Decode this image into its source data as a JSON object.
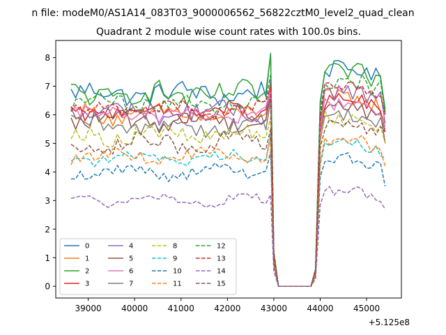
{
  "chart_data": {
    "type": "line",
    "suptitle": "n file: modeM0/AS1A14_083T03_9000006562_56822cztM0_level2_quad_clean",
    "title": "Quadrant 2 module wise count rates with 100.0s bins.",
    "xlabel": "",
    "ylabel": "",
    "x_offset_label": "+5.125e8",
    "xlim": [
      38300,
      45750
    ],
    "ylim": [
      -0.41,
      8.6
    ],
    "xticks": [
      39000,
      40000,
      41000,
      42000,
      43000,
      44000,
      45000
    ],
    "yticks": [
      0,
      1,
      2,
      3,
      4,
      5,
      6,
      7,
      8
    ],
    "grid": false,
    "legend_position": "lower-left",
    "legend_columns": 4,
    "x_segments": {
      "segment1": {
        "start": 38630,
        "step": 100,
        "count": 44
      },
      "gap_points": [
        43000,
        43100,
        43200,
        43300,
        43400,
        43500,
        43600,
        43700,
        43800
      ],
      "segment2": {
        "start": 43900,
        "step": 100,
        "count": 16
      }
    },
    "series": [
      {
        "name": "0",
        "color": "#1f77b4",
        "dash": "solid",
        "mean1": 6.75,
        "amp1": 0.35,
        "peak": 8.15,
        "mean2": 7.6,
        "amp2": 0.3,
        "edge": 6.2
      },
      {
        "name": "1",
        "color": "#ff7f0e",
        "dash": "solid",
        "mean1": 6.0,
        "amp1": 0.3,
        "peak": 7.1,
        "mean2": 6.6,
        "amp2": 0.3,
        "edge": 5.7
      },
      {
        "name": "2",
        "color": "#2ca02c",
        "dash": "solid",
        "mean1": 6.7,
        "amp1": 0.4,
        "peak": 8.1,
        "mean2": 7.5,
        "amp2": 0.3,
        "edge": 6.1
      },
      {
        "name": "3",
        "color": "#d62728",
        "dash": "solid",
        "mean1": 6.1,
        "amp1": 0.25,
        "peak": 6.9,
        "mean2": 6.5,
        "amp2": 0.3,
        "edge": 5.4
      },
      {
        "name": "4",
        "color": "#9467bd",
        "dash": "solid",
        "mean1": 6.1,
        "amp1": 0.35,
        "peak": 7.2,
        "mean2": 6.8,
        "amp2": 0.3,
        "edge": 5.7
      },
      {
        "name": "5",
        "color": "#8c564b",
        "dash": "solid",
        "mean1": 5.8,
        "amp1": 0.3,
        "peak": 6.7,
        "mean2": 6.3,
        "amp2": 0.25,
        "edge": 5.0
      },
      {
        "name": "6",
        "color": "#e377c2",
        "dash": "solid",
        "mean1": 6.0,
        "amp1": 0.25,
        "peak": 6.9,
        "mean2": 6.4,
        "amp2": 0.25,
        "edge": 5.6
      },
      {
        "name": "7",
        "color": "#7f7f7f",
        "dash": "solid",
        "mean1": 5.6,
        "amp1": 0.3,
        "peak": 6.5,
        "mean2": 6.0,
        "amp2": 0.25,
        "edge": 5.5
      },
      {
        "name": "8",
        "color": "#bcbd22",
        "dash": "dashed",
        "mean1": 5.3,
        "amp1": 0.3,
        "peak": 5.9,
        "mean2": 5.9,
        "amp2": 0.25,
        "edge": 5.0
      },
      {
        "name": "9",
        "color": "#17becf",
        "dash": "dashed",
        "mean1": 4.5,
        "amp1": 0.2,
        "peak": 5.3,
        "mean2": 5.0,
        "amp2": 0.2,
        "edge": 4.5
      },
      {
        "name": "10",
        "color": "#1f77b4",
        "dash": "dashed",
        "mean1": 4.0,
        "amp1": 0.2,
        "peak": 4.7,
        "mean2": 4.5,
        "amp2": 0.2,
        "edge": 3.5
      },
      {
        "name": "11",
        "color": "#ff7f0e",
        "dash": "dashed",
        "mean1": 4.55,
        "amp1": 0.2,
        "peak": 5.2,
        "mean2": 5.1,
        "amp2": 0.2,
        "edge": 4.2
      },
      {
        "name": "12",
        "color": "#2ca02c",
        "dash": "dashed",
        "mean1": 6.4,
        "amp1": 0.3,
        "peak": 7.4,
        "mean2": 7.2,
        "amp2": 0.3,
        "edge": 6.0
      },
      {
        "name": "13",
        "color": "#d62728",
        "dash": "dashed",
        "mean1": 6.2,
        "amp1": 0.25,
        "peak": 7.0,
        "mean2": 6.9,
        "amp2": 0.25,
        "edge": 6.0
      },
      {
        "name": "14",
        "color": "#9467bd",
        "dash": "dashed",
        "mean1": 3.0,
        "amp1": 0.15,
        "peak": 3.2,
        "mean2": 3.35,
        "amp2": 0.2,
        "edge": 2.7
      },
      {
        "name": "15",
        "color": "#8c564b",
        "dash": "dashed",
        "mean1": 5.0,
        "amp1": 0.3,
        "peak": 5.5,
        "mean2": 5.7,
        "amp2": 0.25,
        "edge": 5.4
      }
    ]
  }
}
